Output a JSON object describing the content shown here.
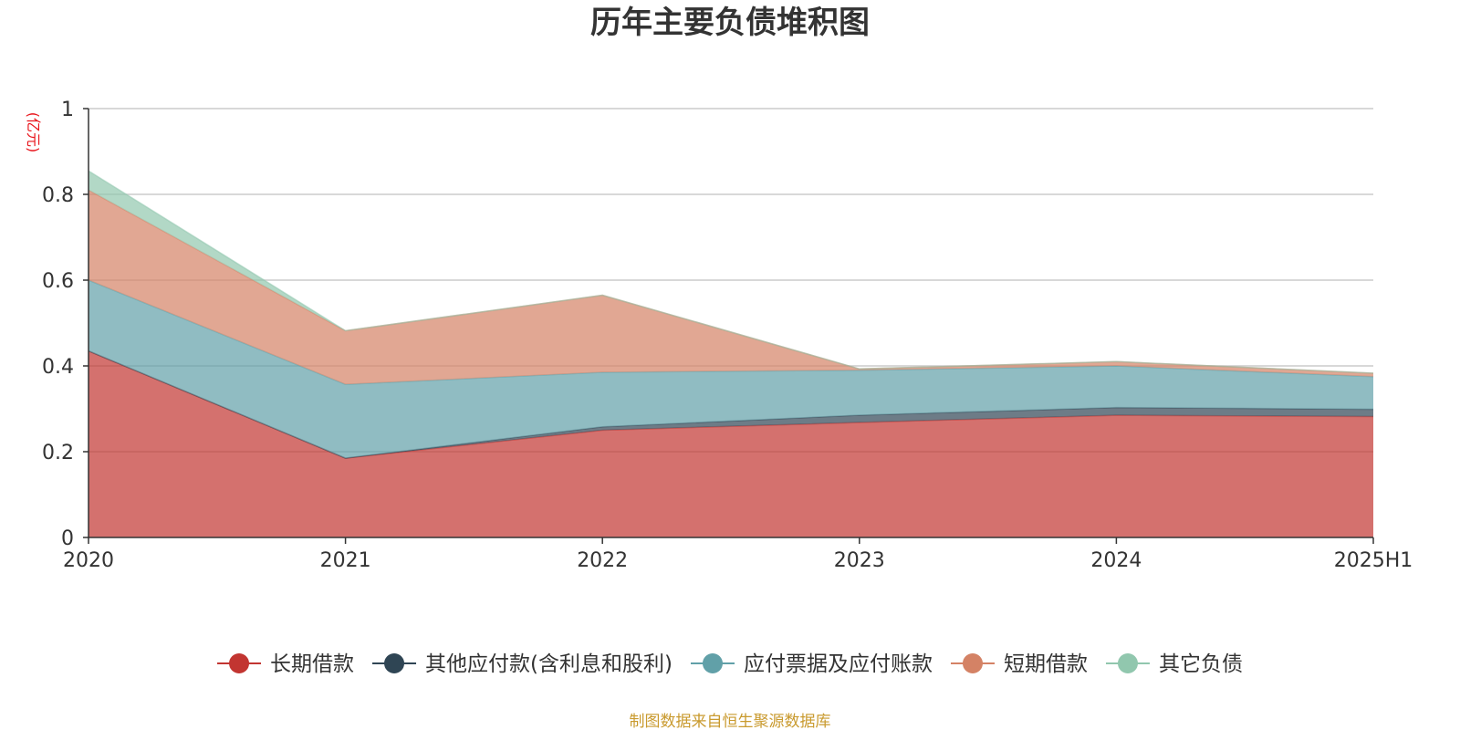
{
  "chart_data": {
    "type": "area",
    "stacked": true,
    "title": "历年主要负债堆积图",
    "unit_label": "(亿元)",
    "categories": [
      "2020",
      "2021",
      "2022",
      "2023",
      "2024",
      "2025H1"
    ],
    "ylim": [
      0,
      1
    ],
    "y_ticks": [
      "0",
      "0.2",
      "0.4",
      "0.6",
      "0.8",
      "1"
    ],
    "y_tick_values": [
      0,
      0.2,
      0.4,
      0.6,
      0.8,
      1
    ],
    "grid": true,
    "legend_position": "bottom",
    "series": [
      {
        "name": "长期借款",
        "color": "#c23531",
        "values": [
          0.435,
          0.185,
          0.25,
          0.268,
          0.285,
          0.282
        ]
      },
      {
        "name": "其他应付款(含利息和股利)",
        "color": "#2f4554",
        "values": [
          0.0,
          0.0,
          0.008,
          0.017,
          0.018,
          0.017
        ]
      },
      {
        "name": "应付票据及应付账款",
        "color": "#61a0a8",
        "values": [
          0.165,
          0.172,
          0.127,
          0.105,
          0.097,
          0.076
        ]
      },
      {
        "name": "短期借款",
        "color": "#d48265",
        "values": [
          0.21,
          0.125,
          0.18,
          0.003,
          0.01,
          0.008
        ]
      },
      {
        "name": "其它负债",
        "color": "#91c7ae",
        "values": [
          0.045,
          0.0,
          0.0,
          0.0,
          0.0,
          0.0
        ]
      }
    ],
    "source": "制图数据来自恒生聚源数据库"
  }
}
